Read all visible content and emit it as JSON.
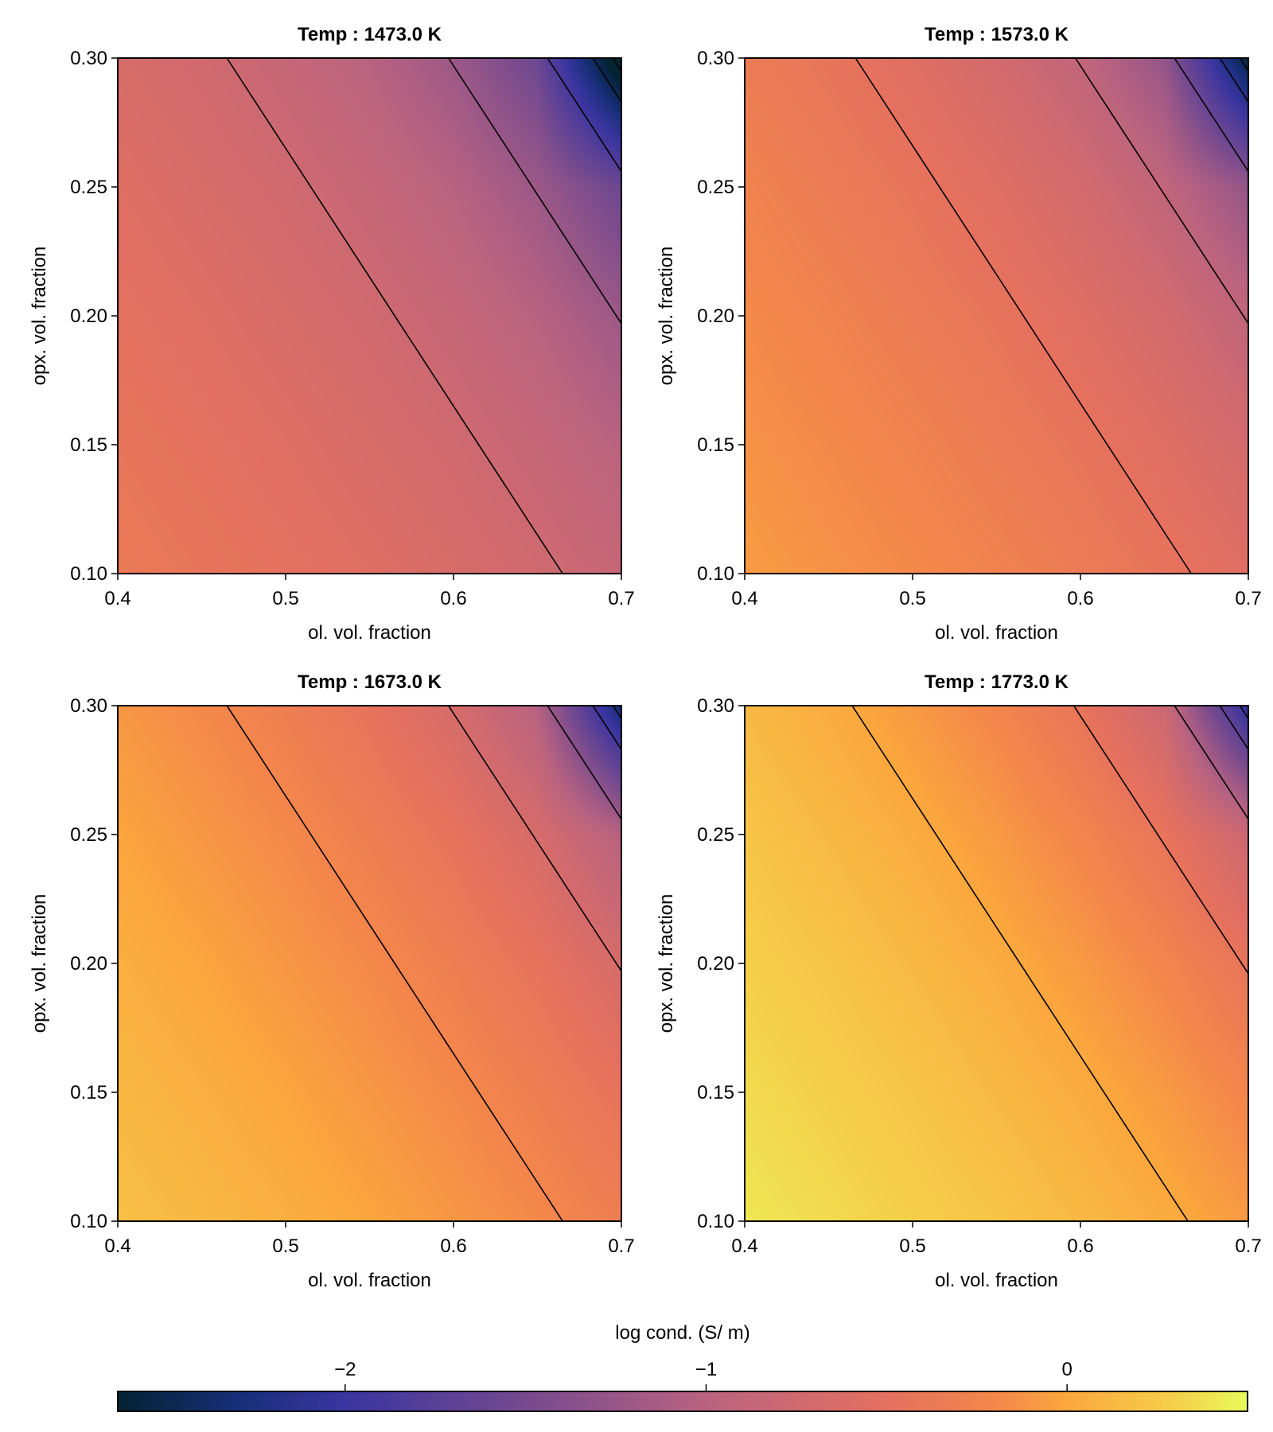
{
  "chart_data": {
    "type": "heatmap",
    "panels": [
      {
        "title": "Temp : 1473.0 K",
        "xlabel": "ol. vol. fraction",
        "ylabel": "opx. vol. fraction",
        "xlim": [
          0.4,
          0.7
        ],
        "ylim": [
          0.1,
          0.3
        ],
        "xticks": [
          "0.4",
          "0.5",
          "0.6",
          "0.7"
        ],
        "yticks": [
          "0.10",
          "0.15",
          "0.20",
          "0.25",
          "0.30"
        ],
        "grid_x": [
          0.4,
          0.45,
          0.5,
          0.55,
          0.6,
          0.65,
          0.7
        ],
        "grid_y": [
          0.1,
          0.15,
          0.2,
          0.25,
          0.3
        ],
        "z": [
          [
            -0.37,
            -0.43,
            -0.49,
            -0.56,
            -0.65,
            -0.74,
            -0.86
          ],
          [
            -0.43,
            -0.49,
            -0.56,
            -0.65,
            -0.74,
            -0.86,
            -1.01
          ],
          [
            -0.49,
            -0.56,
            -0.65,
            -0.74,
            -0.86,
            -1.01,
            -1.22
          ],
          [
            -0.56,
            -0.65,
            -0.74,
            -0.86,
            -1.01,
            -1.22,
            -1.58
          ],
          [
            -0.65,
            -0.74,
            -0.86,
            -1.01,
            -1.22,
            -1.58,
            -2.88
          ]
        ],
        "contours": [
          [
            [
              0.465,
              0.3
            ],
            [
              0.665,
              0.1
            ]
          ],
          [
            [
              0.597,
              0.3
            ],
            [
              0.7,
              0.197
            ]
          ],
          [
            [
              0.656,
              0.3
            ],
            [
              0.7,
              0.256
            ]
          ],
          [
            [
              0.683,
              0.3
            ],
            [
              0.7,
              0.283
            ]
          ],
          [
            [
              0.695,
              0.3
            ],
            [
              0.7,
              0.295
            ]
          ]
        ]
      },
      {
        "title": "Temp : 1573.0 K",
        "xlabel": "ol. vol. fraction",
        "ylabel": "opx. vol. fraction",
        "xlim": [
          0.4,
          0.7
        ],
        "ylim": [
          0.1,
          0.3
        ],
        "xticks": [
          "0.4",
          "0.5",
          "0.6",
          "0.7"
        ],
        "yticks": [
          "0.10",
          "0.15",
          "0.20",
          "0.25",
          "0.30"
        ],
        "grid_x": [
          0.4,
          0.45,
          0.5,
          0.55,
          0.6,
          0.65,
          0.7
        ],
        "grid_y": [
          0.1,
          0.15,
          0.2,
          0.25,
          0.3
        ],
        "z": [
          [
            -0.07,
            -0.13,
            -0.19,
            -0.26,
            -0.35,
            -0.44,
            -0.56
          ],
          [
            -0.13,
            -0.19,
            -0.26,
            -0.35,
            -0.44,
            -0.56,
            -0.71
          ],
          [
            -0.19,
            -0.26,
            -0.35,
            -0.44,
            -0.56,
            -0.71,
            -0.92
          ],
          [
            -0.26,
            -0.35,
            -0.44,
            -0.56,
            -0.71,
            -0.92,
            -1.28
          ],
          [
            -0.35,
            -0.44,
            -0.56,
            -0.71,
            -0.92,
            -1.28,
            -2.58
          ]
        ],
        "contours": [
          [
            [
              0.466,
              0.3
            ],
            [
              0.666,
              0.1
            ]
          ],
          [
            [
              0.597,
              0.3
            ],
            [
              0.7,
              0.197
            ]
          ],
          [
            [
              0.656,
              0.3
            ],
            [
              0.7,
              0.256
            ]
          ],
          [
            [
              0.683,
              0.3
            ],
            [
              0.7,
              0.283
            ]
          ],
          [
            [
              0.695,
              0.3
            ],
            [
              0.7,
              0.295
            ]
          ]
        ]
      },
      {
        "title": "Temp : 1673.0 K",
        "xlabel": "ol. vol. fraction",
        "ylabel": "opx. vol. fraction",
        "xlim": [
          0.4,
          0.7
        ],
        "ylim": [
          0.1,
          0.3
        ],
        "xticks": [
          "0.4",
          "0.5",
          "0.6",
          "0.7"
        ],
        "yticks": [
          "0.10",
          "0.15",
          "0.20",
          "0.25",
          "0.30"
        ],
        "grid_x": [
          0.4,
          0.45,
          0.5,
          0.55,
          0.6,
          0.65,
          0.7
        ],
        "grid_y": [
          0.1,
          0.15,
          0.2,
          0.25,
          0.3
        ],
        "z": [
          [
            0.18,
            0.12,
            0.06,
            -0.01,
            -0.1,
            -0.19,
            -0.31
          ],
          [
            0.12,
            0.06,
            -0.01,
            -0.1,
            -0.19,
            -0.31,
            -0.46
          ],
          [
            0.06,
            -0.01,
            -0.1,
            -0.19,
            -0.31,
            -0.46,
            -0.67
          ],
          [
            -0.01,
            -0.1,
            -0.19,
            -0.31,
            -0.46,
            -0.67,
            -1.03
          ],
          [
            -0.1,
            -0.19,
            -0.31,
            -0.46,
            -0.67,
            -1.03,
            -2.33
          ]
        ],
        "contours": [
          [
            [
              0.465,
              0.3
            ],
            [
              0.665,
              0.1
            ]
          ],
          [
            [
              0.597,
              0.3
            ],
            [
              0.7,
              0.197
            ]
          ],
          [
            [
              0.656,
              0.3
            ],
            [
              0.7,
              0.256
            ]
          ],
          [
            [
              0.683,
              0.3
            ],
            [
              0.7,
              0.283
            ]
          ],
          [
            [
              0.695,
              0.3
            ],
            [
              0.7,
              0.295
            ]
          ]
        ]
      },
      {
        "title": "Temp : 1773.0 K",
        "xlabel": "ol. vol. fraction",
        "ylabel": "opx. vol. fraction",
        "xlim": [
          0.4,
          0.7
        ],
        "ylim": [
          0.1,
          0.3
        ],
        "xticks": [
          "0.4",
          "0.5",
          "0.6",
          "0.7"
        ],
        "yticks": [
          "0.10",
          "0.15",
          "0.20",
          "0.25",
          "0.30"
        ],
        "grid_x": [
          0.4,
          0.45,
          0.5,
          0.55,
          0.6,
          0.65,
          0.7
        ],
        "grid_y": [
          0.1,
          0.15,
          0.2,
          0.25,
          0.3
        ],
        "z": [
          [
            0.41,
            0.35,
            0.29,
            0.22,
            0.13,
            0.04,
            -0.08
          ],
          [
            0.35,
            0.29,
            0.22,
            0.13,
            0.04,
            -0.08,
            -0.23
          ],
          [
            0.29,
            0.22,
            0.13,
            0.04,
            -0.08,
            -0.23,
            -0.44
          ],
          [
            0.22,
            0.13,
            0.04,
            -0.08,
            -0.23,
            -0.44,
            -0.8
          ],
          [
            0.13,
            0.04,
            -0.08,
            -0.23,
            -0.44,
            -0.8,
            -2.1
          ]
        ],
        "contours": [
          [
            [
              0.464,
              0.3
            ],
            [
              0.664,
              0.1
            ]
          ],
          [
            [
              0.596,
              0.3
            ],
            [
              0.7,
              0.196
            ]
          ],
          [
            [
              0.656,
              0.3
            ],
            [
              0.7,
              0.256
            ]
          ],
          [
            [
              0.683,
              0.3
            ],
            [
              0.7,
              0.283
            ]
          ],
          [
            [
              0.695,
              0.3
            ],
            [
              0.7,
              0.295
            ]
          ]
        ]
      }
    ],
    "colorbar": {
      "label": "log cond. (S/ m)",
      "range": [
        -2.63,
        0.5
      ],
      "ticks": [
        -2,
        -1,
        0
      ],
      "tick_labels": [
        "−2",
        "−1",
        "0"
      ],
      "colormap": [
        [
          -2.63,
          "#042333"
        ],
        [
          -2.3,
          "#172f78"
        ],
        [
          -2.0,
          "#3a35a0"
        ],
        [
          -1.5,
          "#764a8f"
        ],
        [
          -1.0,
          "#ba6380"
        ],
        [
          -0.5,
          "#e4705f"
        ],
        [
          -0.2,
          "#f4874a"
        ],
        [
          0.0,
          "#fba73d"
        ],
        [
          0.3,
          "#f5d04a"
        ],
        [
          0.5,
          "#e8fa5b"
        ]
      ]
    }
  }
}
